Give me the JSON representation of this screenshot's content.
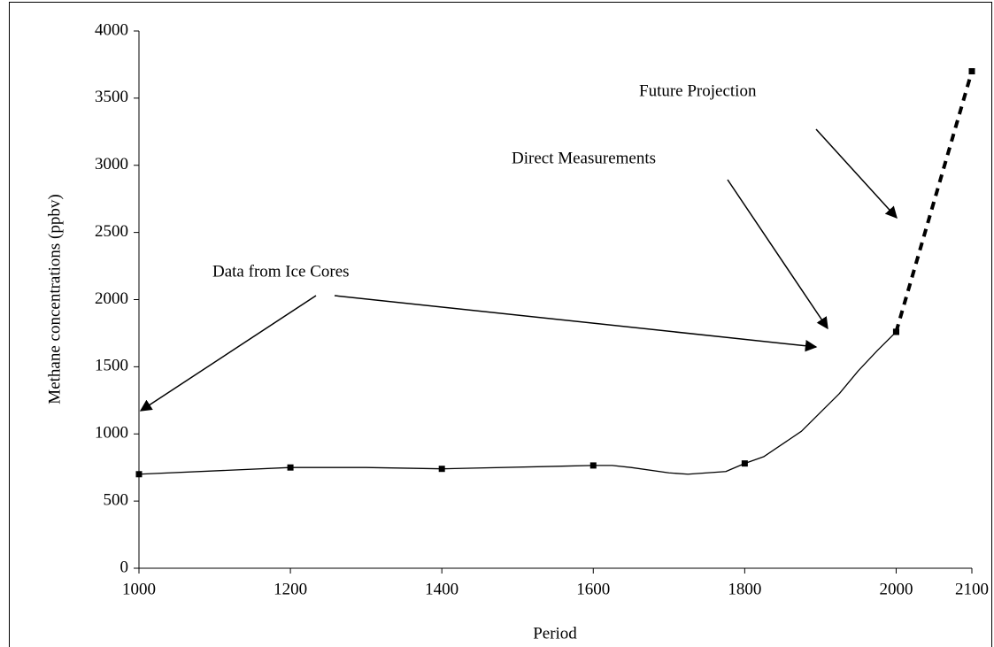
{
  "chart_data": {
    "type": "line",
    "xlabel": "Period",
    "ylabel": "Methane concentrations (ppbv)",
    "xlim": [
      1000,
      2100
    ],
    "xticks": [
      1000,
      1200,
      1400,
      1600,
      1800,
      2000,
      2100
    ],
    "ylim": [
      0,
      4000
    ],
    "yticks": [
      0,
      500,
      1000,
      1500,
      2000,
      2500,
      3000,
      3500,
      4000
    ],
    "grid": false,
    "series": [
      {
        "color": "#000000",
        "style": "line",
        "dash": false,
        "x": [
          1000,
          1200,
          1300,
          1400,
          1600,
          1625,
          1650,
          1700,
          1725,
          1775,
          1800,
          1825,
          1875,
          1925,
          1950,
          1975,
          2000
        ],
        "values": [
          700,
          750,
          750,
          740,
          765,
          765,
          750,
          710,
          700,
          720,
          780,
          830,
          1020,
          1300,
          1470,
          1620,
          1760
        ]
      },
      {
        "color": "#000000",
        "style": "markers",
        "dash": false,
        "x": [
          1000,
          1200,
          1400,
          1600,
          1800,
          2000
        ],
        "values": [
          700,
          750,
          740,
          765,
          780,
          1760
        ]
      },
      {
        "color": "#000000",
        "style": "line-markers",
        "dash": true,
        "x": [
          2000,
          2100
        ],
        "values": [
          1760,
          3700
        ]
      }
    ],
    "annotations": [
      "Data from Ice Cores",
      "Direct Measurements",
      "Future Projection"
    ]
  }
}
